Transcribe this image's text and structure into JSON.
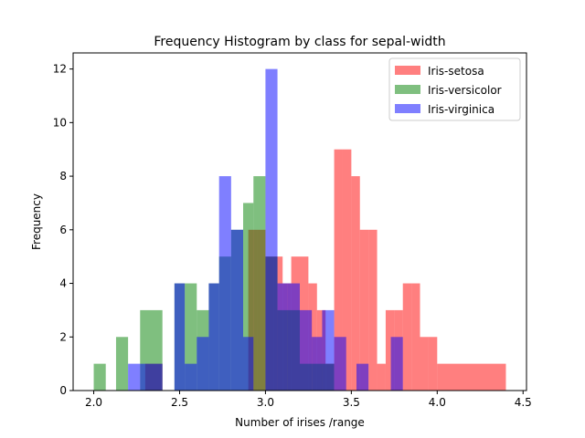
{
  "chart_data": {
    "type": "bar",
    "title": "Frequency Histogram by class for  sepal-width",
    "xlabel": "Number of irises /range",
    "ylabel": "Frequency",
    "xlim": [
      1.88,
      4.52
    ],
    "ylim": [
      0,
      12.6
    ],
    "xticks": [
      2.0,
      2.5,
      3.0,
      3.5,
      4.0,
      4.5
    ],
    "xtick_labels": [
      "2.0",
      "2.5",
      "3.0",
      "3.5",
      "4.0",
      "4.5"
    ],
    "yticks": [
      0,
      2,
      4,
      6,
      8,
      10,
      12
    ],
    "ytick_labels": [
      "0",
      "2",
      "4",
      "6",
      "8",
      "10",
      "12"
    ],
    "grid": false,
    "legend_position": "top-right",
    "series": [
      {
        "name": "Iris-setosa",
        "color": "#ff0000",
        "alpha": 0.5,
        "bins": [
          [
            2.3,
            2.4,
            1
          ],
          [
            2.8,
            2.9,
            0
          ],
          [
            2.9,
            2.95,
            6
          ],
          [
            2.95,
            3.0,
            6
          ],
          [
            3.0,
            3.05,
            5
          ],
          [
            3.05,
            3.1,
            5
          ],
          [
            3.1,
            3.15,
            4
          ],
          [
            3.15,
            3.2,
            5
          ],
          [
            3.2,
            3.25,
            5
          ],
          [
            3.25,
            3.3,
            4
          ],
          [
            3.3,
            3.35,
            3
          ],
          [
            3.35,
            3.4,
            1
          ],
          [
            3.4,
            3.45,
            9
          ],
          [
            3.45,
            3.5,
            9
          ],
          [
            3.5,
            3.55,
            8
          ],
          [
            3.55,
            3.6,
            6
          ],
          [
            3.6,
            3.65,
            6
          ],
          [
            3.65,
            3.7,
            1
          ],
          [
            3.7,
            3.75,
            3
          ],
          [
            3.75,
            3.8,
            3
          ],
          [
            3.8,
            3.85,
            4
          ],
          [
            3.85,
            3.9,
            4
          ],
          [
            3.9,
            3.95,
            2
          ],
          [
            3.95,
            4.0,
            2
          ],
          [
            4.0,
            4.4,
            1
          ]
        ]
      },
      {
        "name": "Iris-versicolor",
        "color": "#008000",
        "alpha": 0.5,
        "bins": [
          [
            2.0,
            2.07,
            1
          ],
          [
            2.13,
            2.2,
            2
          ],
          [
            2.27,
            2.4,
            3
          ],
          [
            2.4,
            2.47,
            0
          ],
          [
            2.47,
            2.53,
            4
          ],
          [
            2.53,
            2.6,
            4
          ],
          [
            2.6,
            2.67,
            3
          ],
          [
            2.67,
            2.73,
            4
          ],
          [
            2.73,
            2.8,
            5
          ],
          [
            2.8,
            2.87,
            6
          ],
          [
            2.87,
            2.93,
            7
          ],
          [
            2.93,
            3.0,
            8
          ],
          [
            3.0,
            3.07,
            5
          ],
          [
            3.07,
            3.2,
            3
          ],
          [
            3.2,
            3.27,
            1
          ],
          [
            3.27,
            3.4,
            1
          ]
        ]
      },
      {
        "name": "Iris-virginica",
        "color": "#0000ff",
        "alpha": 0.5,
        "bins": [
          [
            2.2,
            2.27,
            1
          ],
          [
            2.27,
            2.4,
            1
          ],
          [
            2.47,
            2.53,
            4
          ],
          [
            2.53,
            2.6,
            1
          ],
          [
            2.6,
            2.67,
            2
          ],
          [
            2.67,
            2.73,
            4
          ],
          [
            2.73,
            2.8,
            8
          ],
          [
            2.8,
            2.87,
            6
          ],
          [
            2.87,
            2.93,
            2
          ],
          [
            2.93,
            3.0,
            0
          ],
          [
            3.0,
            3.07,
            12
          ],
          [
            3.07,
            3.13,
            4
          ],
          [
            3.13,
            3.2,
            4
          ],
          [
            3.2,
            3.27,
            3
          ],
          [
            3.27,
            3.33,
            2
          ],
          [
            3.33,
            3.4,
            3
          ],
          [
            3.4,
            3.47,
            2
          ],
          [
            3.53,
            3.6,
            1
          ],
          [
            3.73,
            3.8,
            2
          ]
        ]
      }
    ]
  }
}
